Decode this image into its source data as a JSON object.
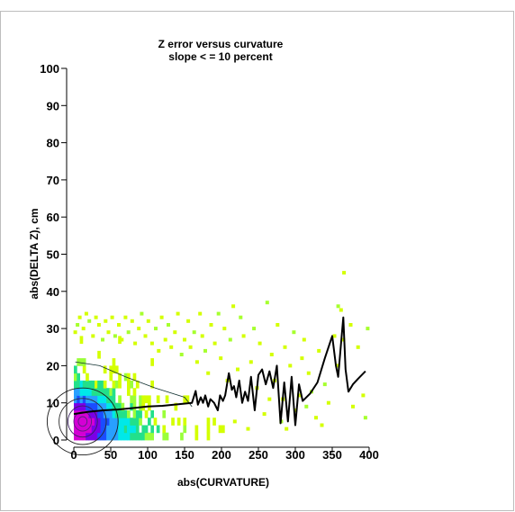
{
  "chart_data": {
    "type": "heatmap",
    "title": "Z error versus curvature",
    "subtitle": "slope < = 10 percent",
    "xlabel": "abs(CURVATURE)",
    "ylabel": "abs(DELTA Z), cm",
    "xlim": [
      0,
      400
    ],
    "ylim": [
      0,
      100
    ],
    "xticks": [
      "0",
      "50",
      "100",
      "150",
      "200",
      "250",
      "300",
      "350",
      "400"
    ],
    "yticks": [
      "0",
      "10",
      "20",
      "30",
      "40",
      "50",
      "60",
      "70",
      "80",
      "90",
      "100"
    ],
    "grid": false,
    "legend": "none",
    "density_colors": [
      "#d4ff00",
      "#9aff3a",
      "#22e08a",
      "#00e8e8",
      "#29a0ff",
      "#1a4dff",
      "#7a00e6",
      "#d400d4",
      "#ff33cc"
    ],
    "density_model": {
      "core": {
        "x": 12,
        "y": 4.5,
        "sx": 25,
        "sy": 5.5
      },
      "tail": {
        "x_scale": 55,
        "y_scale": 7
      },
      "max_x": 260,
      "max_y": 34
    },
    "series": [
      {
        "type": "line",
        "color": "#000000",
        "x": [
          0,
          20,
          40,
          60,
          80,
          100,
          120,
          140,
          160,
          165,
          168,
          172,
          175,
          178,
          182,
          185,
          190,
          195,
          198,
          202,
          205,
          210,
          214,
          217,
          220,
          224,
          228,
          232,
          236,
          240,
          245,
          250,
          255,
          260,
          265,
          270,
          275,
          280,
          285,
          290,
          295,
          300,
          305,
          310,
          320,
          330,
          340,
          350,
          355,
          358,
          362,
          365,
          368,
          372,
          378,
          385,
          395
        ],
        "y": [
          7.0,
          7.6,
          8.0,
          8.2,
          8.6,
          9.0,
          9.2,
          9.6,
          10.0,
          13.2,
          9.5,
          11.5,
          10.0,
          12.0,
          9.0,
          11.0,
          10.0,
          8.0,
          12.0,
          10.5,
          12.0,
          18.0,
          13.5,
          14.5,
          11.5,
          16.0,
          10.0,
          13.0,
          10.5,
          17.0,
          8.0,
          17.5,
          19.0,
          15.0,
          18.5,
          14.0,
          20.0,
          4.5,
          15.5,
          5.0,
          17.0,
          4.0,
          15.0,
          10.5,
          12.5,
          15.5,
          22.0,
          28.0,
          20.0,
          17.0,
          26.0,
          33.0,
          19.0,
          13.0,
          15.0,
          16.5,
          18.5
        ]
      }
    ],
    "scatter_points": [
      {
        "x": 358,
        "y": 36
      },
      {
        "x": 366,
        "y": 45
      },
      {
        "x": 362,
        "y": 35
      },
      {
        "x": 375,
        "y": 31
      },
      {
        "x": 398,
        "y": 30
      },
      {
        "x": 365,
        "y": 27
      },
      {
        "x": 385,
        "y": 25
      },
      {
        "x": 392,
        "y": 12
      },
      {
        "x": 395,
        "y": 6
      },
      {
        "x": 378,
        "y": 9
      },
      {
        "x": 353,
        "y": 28
      },
      {
        "x": 358,
        "y": 20
      },
      {
        "x": 340,
        "y": 15
      },
      {
        "x": 332,
        "y": 24
      },
      {
        "x": 336,
        "y": 4
      },
      {
        "x": 318,
        "y": 18
      },
      {
        "x": 315,
        "y": 9
      },
      {
        "x": 312,
        "y": 27
      },
      {
        "x": 305,
        "y": 12
      },
      {
        "x": 300,
        "y": 8
      },
      {
        "x": 298,
        "y": 29
      },
      {
        "x": 293,
        "y": 20
      },
      {
        "x": 288,
        "y": 3
      },
      {
        "x": 283,
        "y": 11
      },
      {
        "x": 281,
        "y": 5
      },
      {
        "x": 276,
        "y": 31
      },
      {
        "x": 272,
        "y": 16
      },
      {
        "x": 268,
        "y": 23
      },
      {
        "x": 262,
        "y": 37
      },
      {
        "x": 258,
        "y": 7
      },
      {
        "x": 252,
        "y": 26
      },
      {
        "x": 248,
        "y": 14
      },
      {
        "x": 244,
        "y": 30
      },
      {
        "x": 240,
        "y": 21
      },
      {
        "x": 236,
        "y": 3
      },
      {
        "x": 230,
        "y": 28
      },
      {
        "x": 226,
        "y": 33
      },
      {
        "x": 222,
        "y": 19
      },
      {
        "x": 218,
        "y": 5
      },
      {
        "x": 216,
        "y": 36
      },
      {
        "x": 212,
        "y": 27
      },
      {
        "x": 208,
        "y": 16
      },
      {
        "x": 204,
        "y": 30
      },
      {
        "x": 199,
        "y": 22
      },
      {
        "x": 196,
        "y": 34
      },
      {
        "x": 191,
        "y": 26
      },
      {
        "x": 186,
        "y": 31
      },
      {
        "x": 182,
        "y": 18
      },
      {
        "x": 178,
        "y": 24
      },
      {
        "x": 174,
        "y": 28
      },
      {
        "x": 171,
        "y": 34
      },
      {
        "x": 167,
        "y": 21
      },
      {
        "x": 163,
        "y": 29
      },
      {
        "x": 158,
        "y": 25
      },
      {
        "x": 155,
        "y": 32
      },
      {
        "x": 150,
        "y": 27
      },
      {
        "x": 146,
        "y": 23
      },
      {
        "x": 141,
        "y": 34
      },
      {
        "x": 137,
        "y": 29
      },
      {
        "x": 132,
        "y": 25
      },
      {
        "x": 128,
        "y": 31
      },
      {
        "x": 124,
        "y": 27
      },
      {
        "x": 119,
        "y": 33
      },
      {
        "x": 115,
        "y": 24
      },
      {
        "x": 111,
        "y": 30
      },
      {
        "x": 106,
        "y": 26
      },
      {
        "x": 101,
        "y": 32
      },
      {
        "x": 97,
        "y": 28
      },
      {
        "x": 92,
        "y": 34
      },
      {
        "x": 88,
        "y": 30
      },
      {
        "x": 83,
        "y": 26
      },
      {
        "x": 79,
        "y": 32
      },
      {
        "x": 74,
        "y": 29
      },
      {
        "x": 70,
        "y": 33
      },
      {
        "x": 65,
        "y": 27
      },
      {
        "x": 61,
        "y": 31
      },
      {
        "x": 56,
        "y": 28
      },
      {
        "x": 52,
        "y": 33
      },
      {
        "x": 47,
        "y": 29
      },
      {
        "x": 43,
        "y": 32
      },
      {
        "x": 39,
        "y": 27
      },
      {
        "x": 34,
        "y": 31
      },
      {
        "x": 30,
        "y": 33
      },
      {
        "x": 26,
        "y": 28
      },
      {
        "x": 21,
        "y": 32
      },
      {
        "x": 17,
        "y": 34
      },
      {
        "x": 13,
        "y": 30
      },
      {
        "x": 8,
        "y": 33
      },
      {
        "x": 5,
        "y": 31
      },
      {
        "x": 2,
        "y": 29
      },
      {
        "x": 345,
        "y": 10
      },
      {
        "x": 328,
        "y": 6
      },
      {
        "x": 322,
        "y": 13
      },
      {
        "x": 309,
        "y": 22
      },
      {
        "x": 286,
        "y": 25
      },
      {
        "x": 265,
        "y": 11
      }
    ]
  }
}
